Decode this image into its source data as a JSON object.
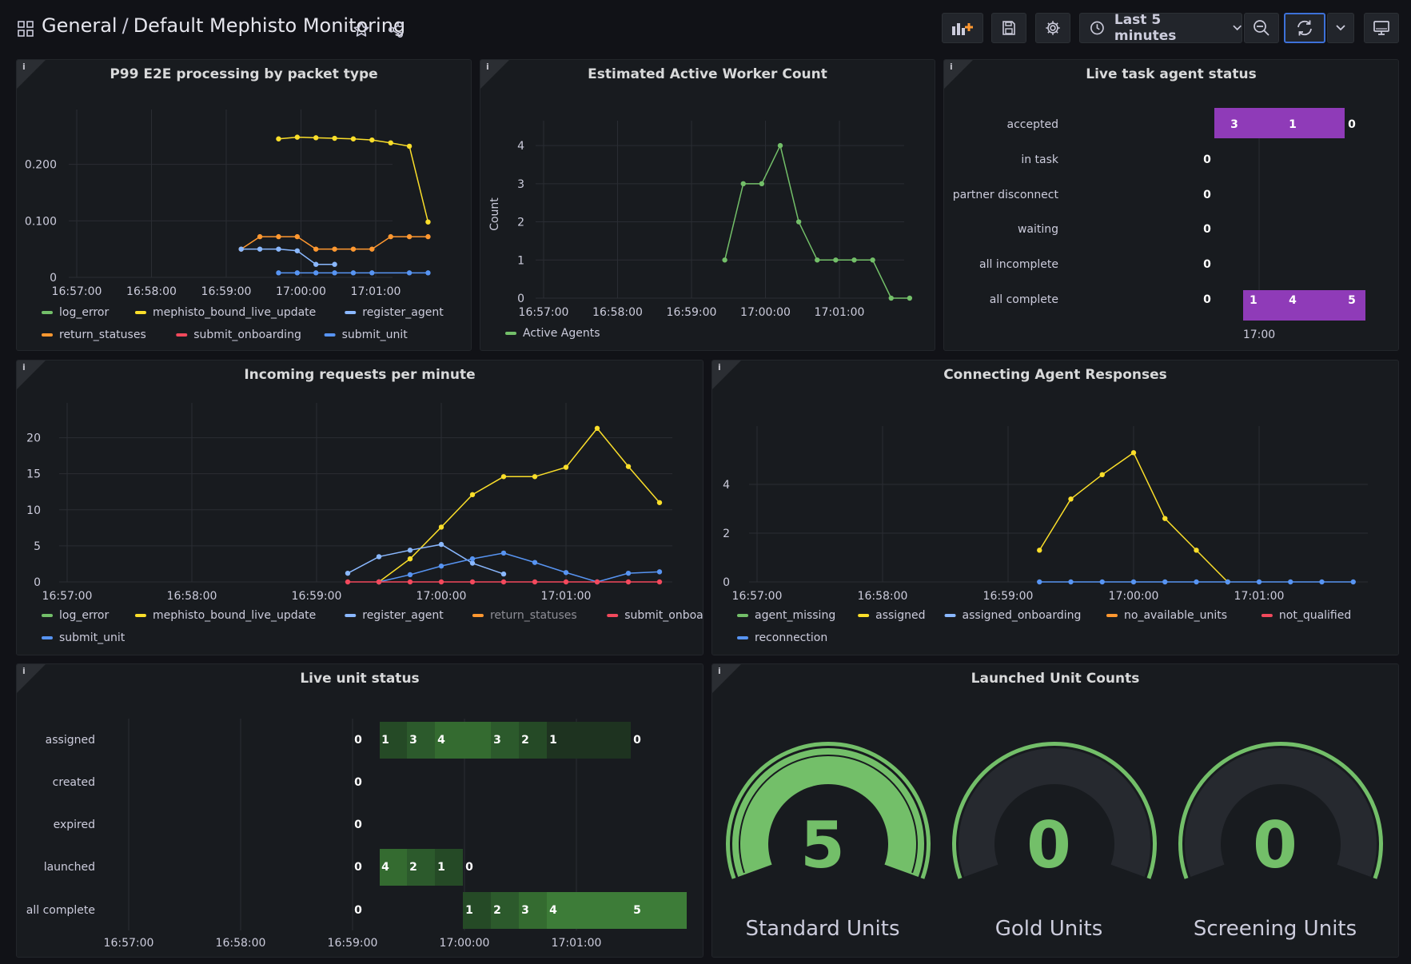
{
  "header": {
    "folder": "General",
    "separator": "/",
    "dashboard_title": "Default Mephisto Monitoring",
    "time_range": "Last 5 minutes"
  },
  "colors": {
    "green": "#73bf69",
    "yellow": "#fade2a",
    "blue": "#8ab8ff",
    "orange": "#ff9830",
    "red": "#f2495c",
    "darkblue": "#5794f2",
    "purple": "#8f3bb8"
  },
  "panels": {
    "p99": {
      "title": "P99 E2E processing by packet type",
      "legend": [
        "log_error",
        "mephisto_bound_live_update",
        "register_agent",
        "return_statuses",
        "submit_onboarding",
        "submit_unit"
      ]
    },
    "workers": {
      "title": "Estimated Active Worker Count",
      "legend": [
        "Active Agents"
      ]
    },
    "task_status": {
      "title": "Live task agent status"
    },
    "incoming": {
      "title": "Incoming requests per minute",
      "legend": [
        "log_error",
        "mephisto_bound_live_update",
        "register_agent",
        "return_statuses",
        "submit_onboarding",
        "submit_unit"
      ]
    },
    "connecting": {
      "title": "Connecting Agent Responses",
      "legend": [
        "agent_missing",
        "assigned",
        "assigned_onboarding",
        "no_available_units",
        "not_qualified",
        "reconnection"
      ]
    },
    "unit_status": {
      "title": "Live unit status"
    },
    "launched": {
      "title": "Launched Unit Counts",
      "gauges": [
        {
          "label": "Standard Units",
          "value": "5"
        },
        {
          "label": "Gold Units",
          "value": "0"
        },
        {
          "label": "Screening Units",
          "value": "0"
        }
      ]
    }
  },
  "chart_data": [
    {
      "id": "p99",
      "type": "line",
      "x_ticks": [
        "16:57:00",
        "16:58:00",
        "16:59:00",
        "17:00:00",
        "17:01:00"
      ],
      "y_ticks": [
        "0",
        "0.100",
        "0.200"
      ],
      "ylim": [
        0,
        0.28
      ],
      "series": [
        {
          "name": "mephisto_bound_live_update",
          "color": "#fade2a",
          "x": [
            169.7,
            169.95,
            170.2,
            170.45,
            170.7,
            170.95,
            171.2,
            171.45,
            171.7
          ],
          "y": [
            0.245,
            0.248,
            0.247,
            0.246,
            0.245,
            0.243,
            0.238,
            0.232,
            0.098
          ]
        },
        {
          "name": "return_statuses",
          "color": "#ff9830",
          "x": [
            169.2,
            169.45,
            169.7,
            169.95,
            170.2,
            170.45,
            170.7,
            170.95,
            171.2,
            171.45,
            171.7
          ],
          "y": [
            0.05,
            0.072,
            0.072,
            0.072,
            0.05,
            0.05,
            0.05,
            0.05,
            0.072,
            0.072,
            0.072
          ]
        },
        {
          "name": "register_agent",
          "color": "#8ab8ff",
          "x": [
            169.2,
            169.45,
            169.7,
            169.95,
            170.2,
            170.45
          ],
          "y": [
            0.05,
            0.05,
            0.05,
            0.047,
            0.023,
            0.023
          ]
        },
        {
          "name": "submit_unit",
          "color": "#5794f2",
          "x": [
            169.7,
            169.95,
            170.2,
            170.45,
            170.7,
            170.95,
            171.45,
            171.7
          ],
          "y": [
            0.008,
            0.008,
            0.008,
            0.008,
            0.008,
            0.008,
            0.008,
            0.008
          ]
        }
      ]
    },
    {
      "id": "workers",
      "type": "line",
      "ylabel": "Count",
      "x_ticks": [
        "16:57:00",
        "16:58:00",
        "16:59:00",
        "17:00:00",
        "17:01:00"
      ],
      "y_ticks": [
        "0",
        "1",
        "2",
        "3",
        "4"
      ],
      "ylim": [
        0,
        4.4
      ],
      "series": [
        {
          "name": "Active Agents",
          "color": "#73bf69",
          "x": [
            169.45,
            169.7,
            169.95,
            170.2,
            170.45,
            170.7,
            170.95,
            171.2,
            171.45,
            171.7,
            171.95
          ],
          "y": [
            1,
            3,
            3,
            4,
            2,
            1,
            1,
            1,
            1,
            0,
            0
          ]
        }
      ]
    },
    {
      "id": "task_status",
      "type": "heatmap",
      "rows": [
        "accepted",
        "in task",
        "partner disconnect",
        "waiting",
        "all incomplete",
        "all complete"
      ],
      "x_tick": "17:00",
      "cells": [
        {
          "row": "accepted",
          "labels": [
            "3",
            "1"
          ],
          "trailing": "0"
        },
        {
          "row": "in task",
          "leading": "0"
        },
        {
          "row": "partner disconnect",
          "leading": "0"
        },
        {
          "row": "waiting",
          "leading": "0"
        },
        {
          "row": "all incomplete",
          "leading": "0"
        },
        {
          "row": "all complete",
          "leading": "0",
          "labels": [
            "1",
            "4",
            "5"
          ]
        }
      ]
    },
    {
      "id": "incoming",
      "type": "line",
      "x_ticks": [
        "16:57:00",
        "16:58:00",
        "16:59:00",
        "17:00:00",
        "17:01:00"
      ],
      "y_ticks": [
        "0",
        "5",
        "10",
        "15",
        "20"
      ],
      "ylim": [
        0,
        23.5
      ],
      "series": [
        {
          "name": "mephisto_bound_live_update",
          "color": "#fade2a",
          "x": [
            169.5,
            169.75,
            170.0,
            170.25,
            170.5,
            170.75,
            171.0,
            171.25,
            171.5,
            171.75
          ],
          "y": [
            0,
            3.2,
            7.6,
            12.1,
            14.6,
            14.6,
            15.9,
            21.3,
            16,
            11
          ]
        },
        {
          "name": "register_agent",
          "color": "#8ab8ff",
          "x": [
            169.25,
            169.5,
            169.75,
            170.0,
            170.25,
            170.5
          ],
          "y": [
            1.2,
            3.5,
            4.4,
            5.2,
            2.6,
            1.1
          ]
        },
        {
          "name": "submit_unit",
          "color": "#5794f2",
          "x": [
            169.5,
            169.75,
            170.0,
            170.25,
            170.5,
            170.75,
            171.0,
            171.25,
            171.5,
            171.75
          ],
          "y": [
            0,
            1.0,
            2.2,
            3.2,
            4.0,
            2.7,
            1.3,
            0,
            1.2,
            1.4
          ]
        },
        {
          "name": "submit_onboarding",
          "color": "#f2495c",
          "x": [
            169.25,
            169.5,
            169.75,
            170.0,
            170.25,
            170.5,
            170.75,
            171.0,
            171.25,
            171.5,
            171.75
          ],
          "y": [
            0,
            0,
            0,
            0,
            0,
            0,
            0,
            0,
            0,
            0,
            0
          ]
        }
      ]
    },
    {
      "id": "connecting",
      "type": "line",
      "x_ticks": [
        "16:57:00",
        "16:58:00",
        "16:59:00",
        "17:00:00",
        "17:01:00"
      ],
      "y_ticks": [
        "0",
        "2",
        "4"
      ],
      "ylim": [
        0,
        6.0
      ],
      "series": [
        {
          "name": "assigned",
          "color": "#fade2a",
          "x": [
            169.25,
            169.5,
            169.75,
            170.0,
            170.25,
            170.5,
            170.75
          ],
          "y": [
            1.3,
            3.4,
            4.4,
            5.3,
            2.6,
            1.3,
            0
          ]
        },
        {
          "name": "reconnection",
          "color": "#5794f2",
          "x": [
            169.25,
            169.5,
            169.75,
            170.0,
            170.25,
            170.5,
            170.75,
            171.0,
            171.25,
            171.5,
            171.75
          ],
          "y": [
            0,
            0,
            0,
            0,
            0,
            0,
            0,
            0,
            0,
            0,
            0
          ]
        }
      ]
    },
    {
      "id": "unit_status",
      "type": "heatmap",
      "rows": [
        "assigned",
        "created",
        "expired",
        "launched",
        "all complete"
      ],
      "x_ticks": [
        "16:57:00",
        "16:58:00",
        "16:59:00",
        "17:00:00",
        "17:01:00"
      ],
      "cells": [
        {
          "row": "assigned",
          "leading": "0",
          "labels": [
            "1",
            "3",
            "4",
            "3",
            "2",
            "1"
          ],
          "trailing": "0"
        },
        {
          "row": "created",
          "leading": "0"
        },
        {
          "row": "expired",
          "leading": "0"
        },
        {
          "row": "launched",
          "leading": "0",
          "labels": [
            "4",
            "2",
            "1"
          ],
          "trailing": "0"
        },
        {
          "row": "all complete",
          "leading": "0",
          "labels": [
            "1",
            "2",
            "3",
            "4",
            "5"
          ]
        }
      ]
    }
  ]
}
